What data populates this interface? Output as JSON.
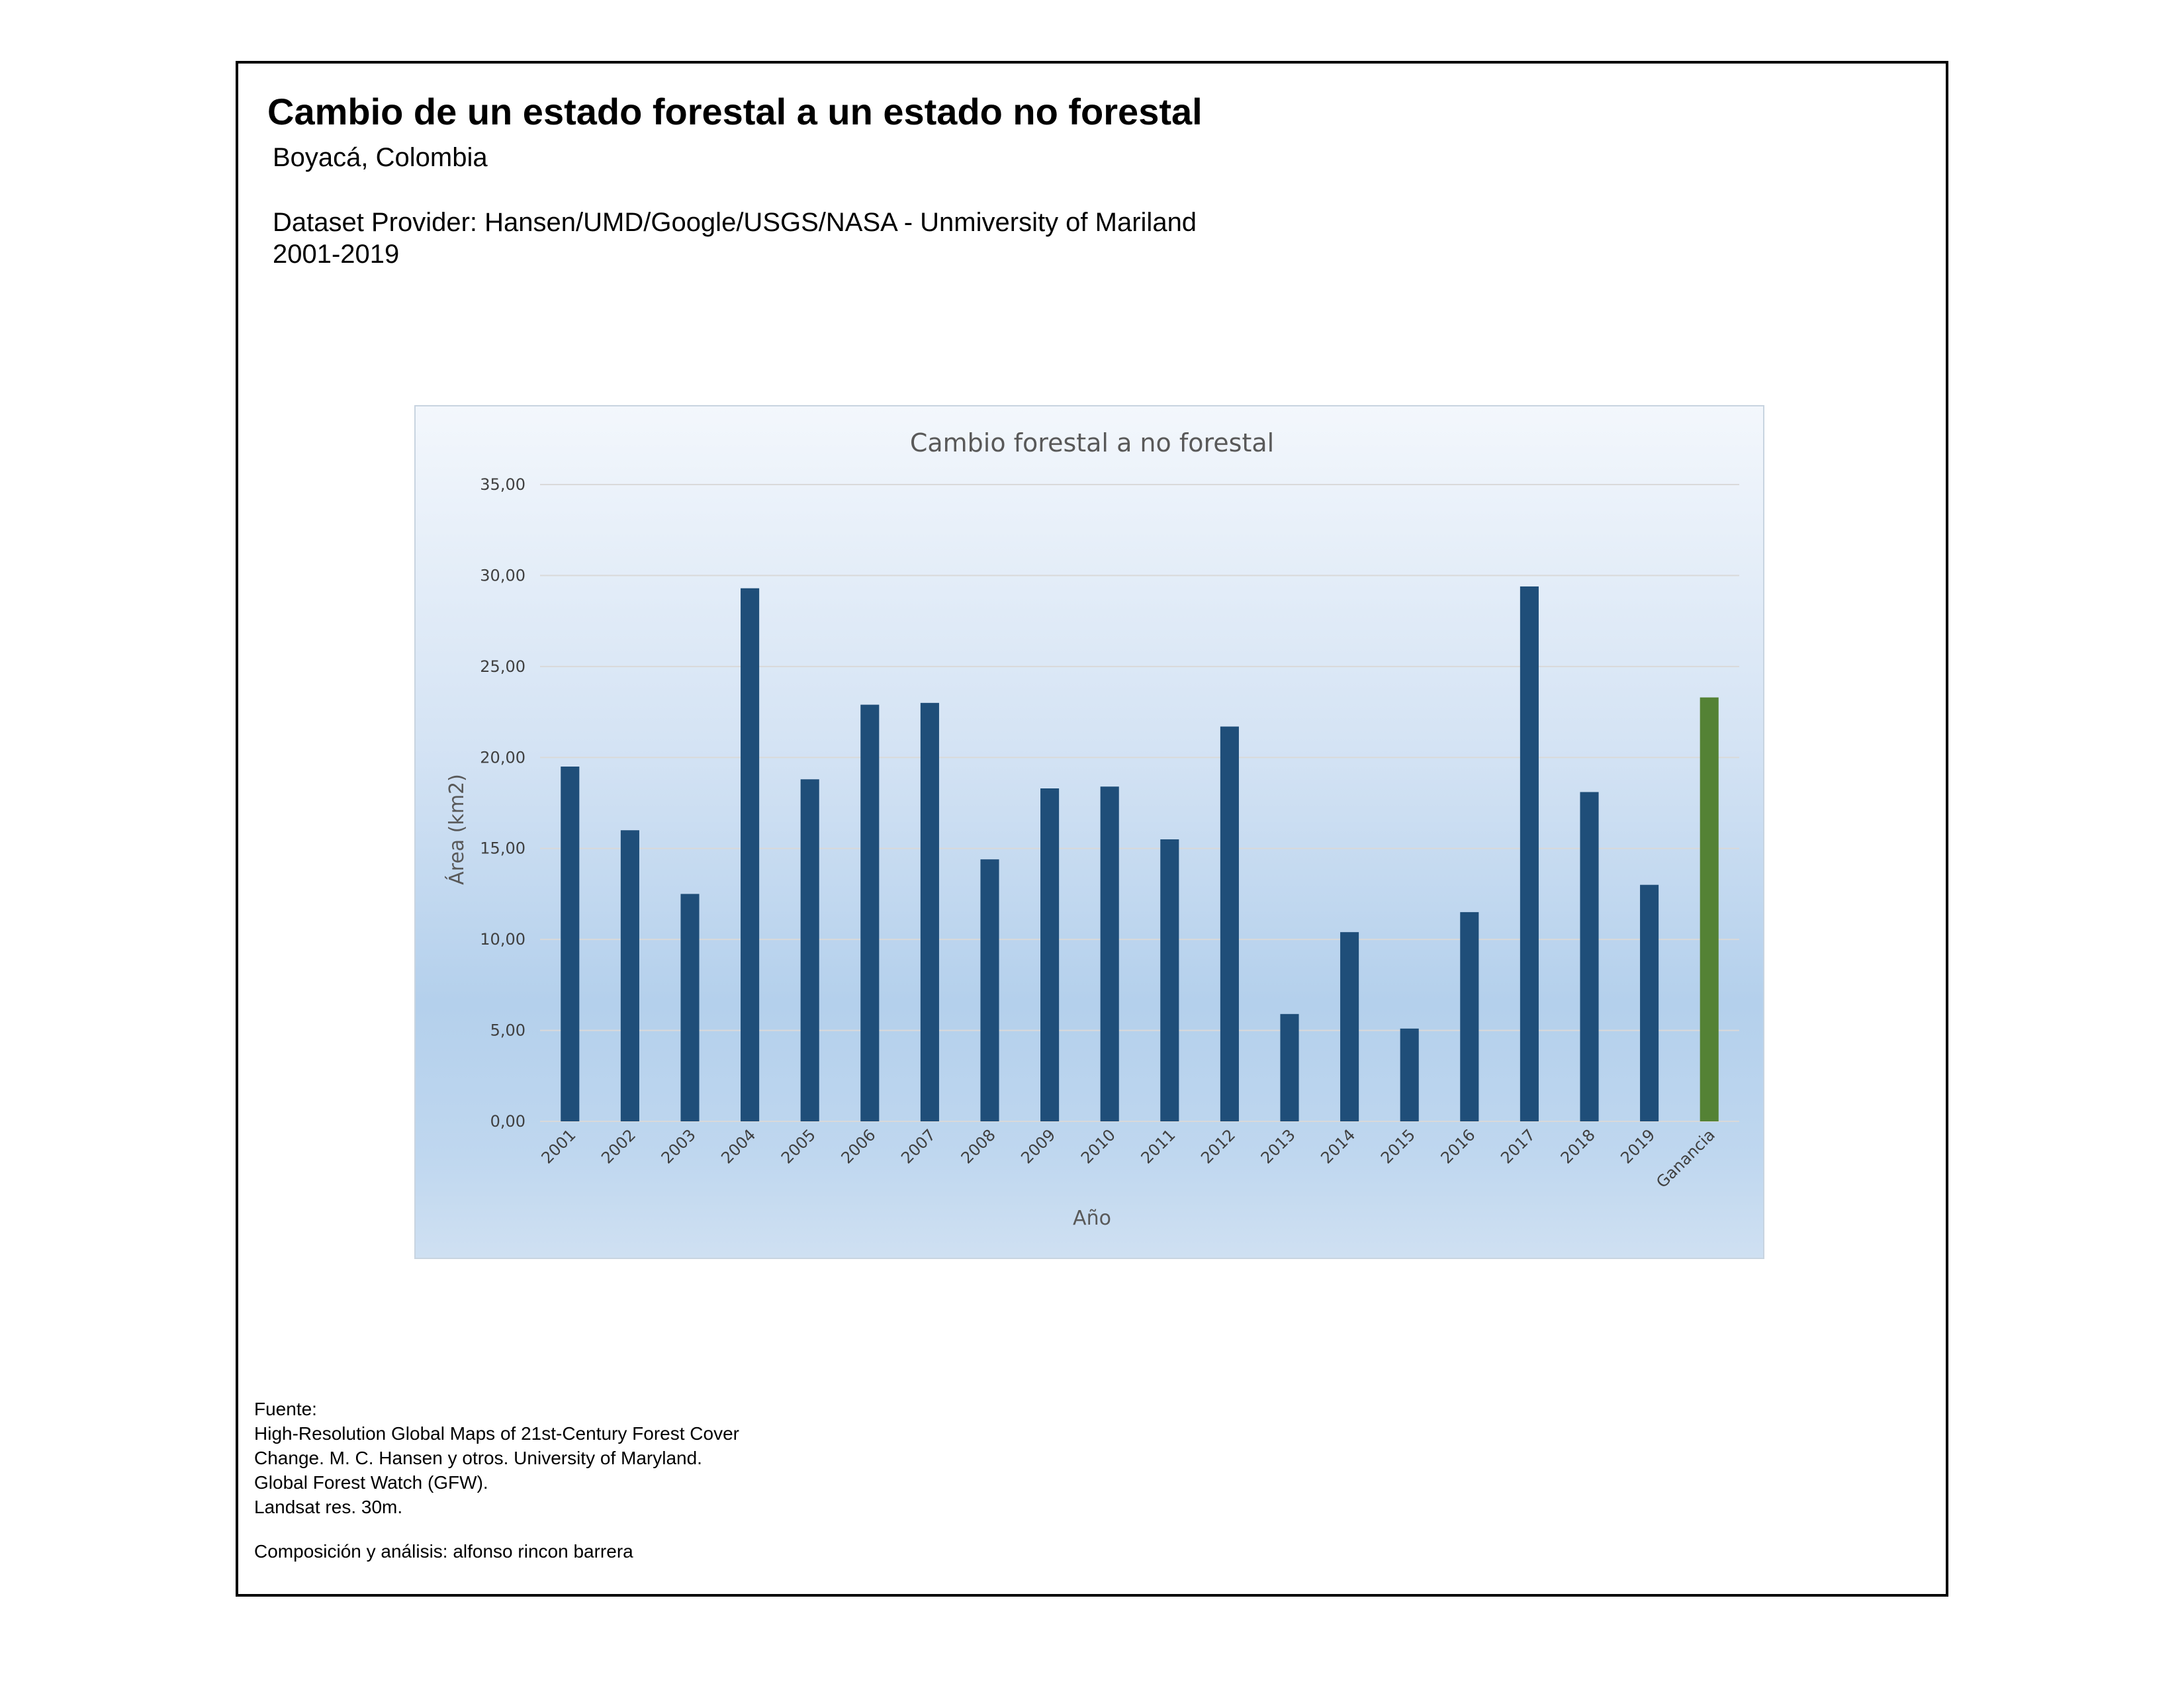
{
  "header": {
    "title": "Cambio de un estado forestal a un estado no forestal",
    "subtitle": "Boyacá, Colombia",
    "provider": "Dataset Provider: Hansen/UMD/Google/USGS/NASA - Unmiversity of Mariland",
    "period": "2001-2019"
  },
  "chart_data": {
    "type": "bar",
    "title": "Cambio forestal a no forestal",
    "xlabel": "Año",
    "ylabel": "Área (km2)",
    "ylim": [
      0,
      35
    ],
    "yticks": [
      "0,00",
      "5,00",
      "10,00",
      "15,00",
      "20,00",
      "25,00",
      "30,00",
      "35,00"
    ],
    "grid": true,
    "categories": [
      "2001",
      "2002",
      "2003",
      "2004",
      "2005",
      "2006",
      "2007",
      "2008",
      "2009",
      "2010",
      "2011",
      "2012",
      "2013",
      "2014",
      "2015",
      "2016",
      "2017",
      "2018",
      "2019",
      "Ganancia"
    ],
    "values": [
      19.5,
      16.0,
      12.5,
      29.3,
      18.8,
      22.9,
      23.0,
      14.4,
      18.3,
      18.4,
      15.5,
      21.7,
      5.9,
      10.4,
      5.1,
      11.5,
      29.4,
      18.1,
      13.0,
      23.3
    ],
    "colors": {
      "loss": "#1f4e79",
      "gain": "#548235",
      "grid": "#d9d9d9"
    }
  },
  "footer": {
    "source_lines": [
      "Fuente:",
      "High-Resolution Global Maps of 21st-Century Forest Cover",
      "Change.  M. C. Hansen y otros.   University of Maryland.",
      "Global Forest Watch (GFW).",
      "Landsat res. 30m."
    ],
    "credit": "Composición y análisis: alfonso rincon barrera"
  }
}
